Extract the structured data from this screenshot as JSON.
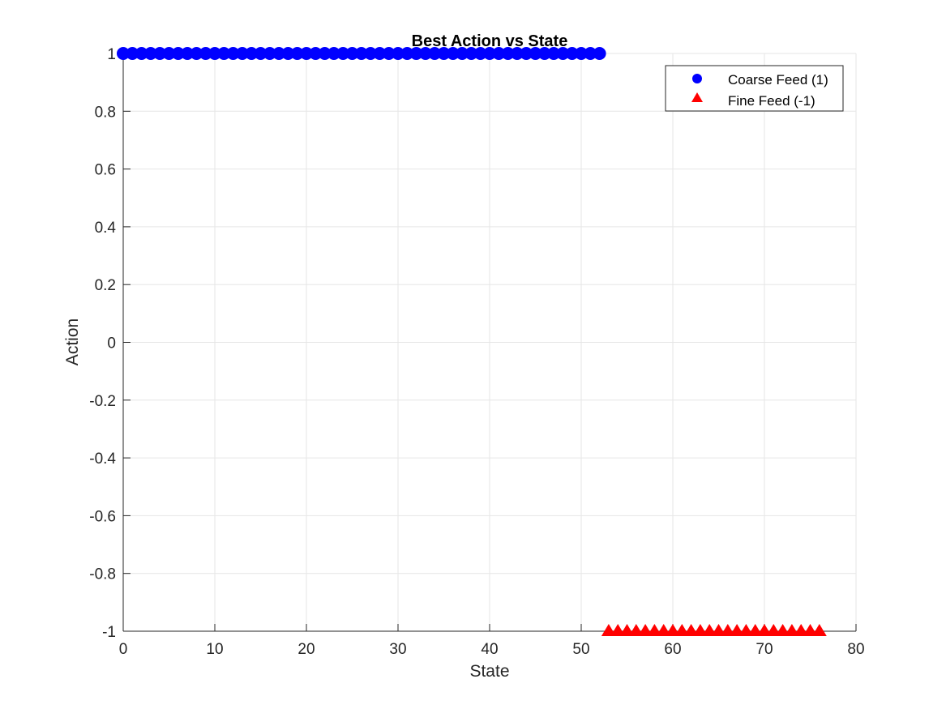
{
  "chart_data": {
    "type": "scatter",
    "title": "Best Action vs State",
    "xlabel": "State",
    "ylabel": "Action",
    "xlim": [
      0,
      80
    ],
    "ylim": [
      -1,
      1
    ],
    "xticks": [
      0,
      10,
      20,
      30,
      40,
      50,
      60,
      70,
      80
    ],
    "yticks": [
      -1,
      -0.8,
      -0.6,
      -0.4,
      -0.2,
      0,
      0.2,
      0.4,
      0.6,
      0.8,
      1
    ],
    "xtick_labels": [
      "0",
      "10",
      "20",
      "30",
      "40",
      "50",
      "60",
      "70",
      "80"
    ],
    "ytick_labels": [
      "-1",
      "-0.8",
      "-0.6",
      "-0.4",
      "-0.2",
      "0",
      "0.2",
      "0.4",
      "0.6",
      "0.8",
      "1"
    ],
    "grid": true,
    "legend_position": "top-right",
    "series": [
      {
        "name": "Coarse Feed (1)",
        "marker": "circle",
        "color": "#0000ff",
        "x": [
          0,
          1,
          2,
          3,
          4,
          5,
          6,
          7,
          8,
          9,
          10,
          11,
          12,
          13,
          14,
          15,
          16,
          17,
          18,
          19,
          20,
          21,
          22,
          23,
          24,
          25,
          26,
          27,
          28,
          29,
          30,
          31,
          32,
          33,
          34,
          35,
          36,
          37,
          38,
          39,
          40,
          41,
          42,
          43,
          44,
          45,
          46,
          47,
          48,
          49,
          50,
          51,
          52
        ],
        "y": [
          1,
          1,
          1,
          1,
          1,
          1,
          1,
          1,
          1,
          1,
          1,
          1,
          1,
          1,
          1,
          1,
          1,
          1,
          1,
          1,
          1,
          1,
          1,
          1,
          1,
          1,
          1,
          1,
          1,
          1,
          1,
          1,
          1,
          1,
          1,
          1,
          1,
          1,
          1,
          1,
          1,
          1,
          1,
          1,
          1,
          1,
          1,
          1,
          1,
          1,
          1,
          1,
          1
        ]
      },
      {
        "name": "Fine Feed (-1)",
        "marker": "triangle",
        "color": "#ff0000",
        "x": [
          53,
          54,
          55,
          56,
          57,
          58,
          59,
          60,
          61,
          62,
          63,
          64,
          65,
          66,
          67,
          68,
          69,
          70,
          71,
          72,
          73,
          74,
          75,
          76
        ],
        "y": [
          -1,
          -1,
          -1,
          -1,
          -1,
          -1,
          -1,
          -1,
          -1,
          -1,
          -1,
          -1,
          -1,
          -1,
          -1,
          -1,
          -1,
          -1,
          -1,
          -1,
          -1,
          -1,
          -1,
          -1
        ]
      }
    ]
  }
}
